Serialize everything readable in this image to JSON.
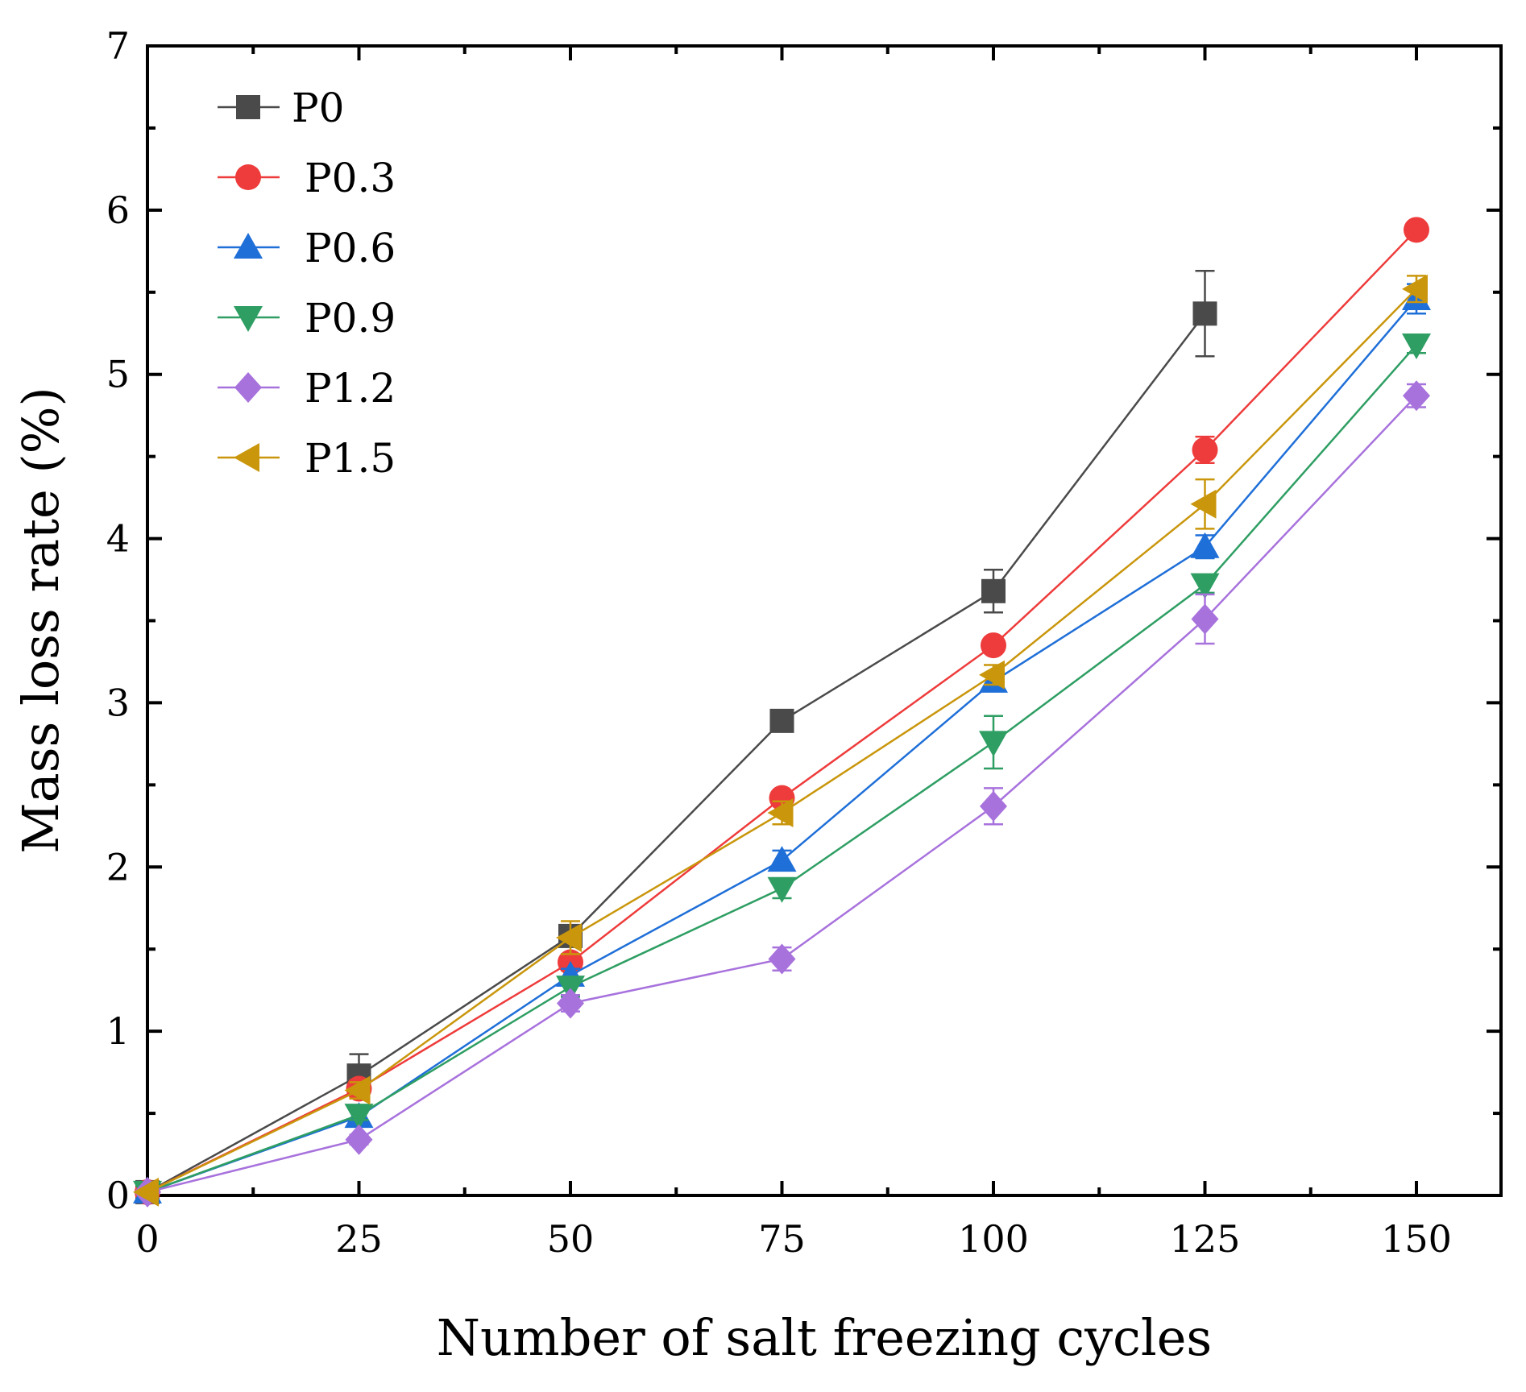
{
  "chart_data": {
    "type": "line",
    "title": "",
    "xlabel": "Number of salt freezing cycles",
    "ylabel": "Mass loss rate (%)",
    "xlim": [
      0,
      160
    ],
    "ylim": [
      0,
      7
    ],
    "xticks": [
      0,
      25,
      50,
      75,
      100,
      125,
      150
    ],
    "yticks": [
      0,
      1,
      2,
      3,
      4,
      5,
      6,
      7
    ],
    "xtick_labels": [
      "0",
      "25",
      "50",
      "75",
      "100",
      "125",
      "150"
    ],
    "ytick_labels": [
      "0",
      "1",
      "2",
      "3",
      "4",
      "5",
      "6",
      "7"
    ],
    "grid": false,
    "legend_position": "top-left",
    "series": [
      {
        "name": "P0",
        "color": "#4a4a4a",
        "marker": "square",
        "x": [
          0,
          25,
          50,
          75,
          100,
          125
        ],
        "values": [
          0.02,
          0.73,
          1.58,
          2.89,
          3.68,
          5.37
        ],
        "errors": [
          0,
          0.13,
          0.06,
          0.03,
          0.13,
          0.26
        ]
      },
      {
        "name": "P0.3",
        "color": "#ee3b3b",
        "marker": "circle",
        "x": [
          0,
          25,
          50,
          75,
          100,
          125,
          150
        ],
        "values": [
          0.02,
          0.65,
          1.42,
          2.42,
          3.35,
          4.54,
          5.88
        ],
        "errors": [
          0,
          0.05,
          0.05,
          0.04,
          0.04,
          0.08,
          0.03
        ]
      },
      {
        "name": "P0.6",
        "color": "#1f6fd8",
        "marker": "triangle-up",
        "x": [
          0,
          25,
          50,
          75,
          100,
          125,
          150
        ],
        "values": [
          0.02,
          0.48,
          1.34,
          2.04,
          3.13,
          3.95,
          5.46
        ],
        "errors": [
          0,
          0.03,
          0.04,
          0.06,
          0.05,
          0.07,
          0.09
        ]
      },
      {
        "name": "P0.9",
        "color": "#2e9e63",
        "marker": "triangle-down",
        "x": [
          0,
          25,
          50,
          75,
          100,
          125,
          150
        ],
        "values": [
          0.02,
          0.49,
          1.27,
          1.87,
          2.76,
          3.72,
          5.18
        ],
        "errors": [
          0,
          0.03,
          0.06,
          0.06,
          0.16,
          0.05,
          0.05
        ]
      },
      {
        "name": "P1.2",
        "color": "#a872dd",
        "marker": "diamond",
        "x": [
          0,
          25,
          50,
          75,
          100,
          125,
          150
        ],
        "values": [
          0.02,
          0.34,
          1.17,
          1.44,
          2.37,
          3.51,
          4.87
        ],
        "errors": [
          0,
          0.03,
          0.05,
          0.07,
          0.11,
          0.15,
          0.07
        ]
      },
      {
        "name": "P1.5",
        "color": "#c9960c",
        "marker": "triangle-left",
        "x": [
          0,
          25,
          50,
          75,
          100,
          125,
          150
        ],
        "values": [
          0.02,
          0.64,
          1.57,
          2.33,
          3.17,
          4.21,
          5.52
        ],
        "errors": [
          0,
          0.05,
          0.1,
          0.07,
          0.06,
          0.15,
          0.08
        ]
      }
    ]
  }
}
